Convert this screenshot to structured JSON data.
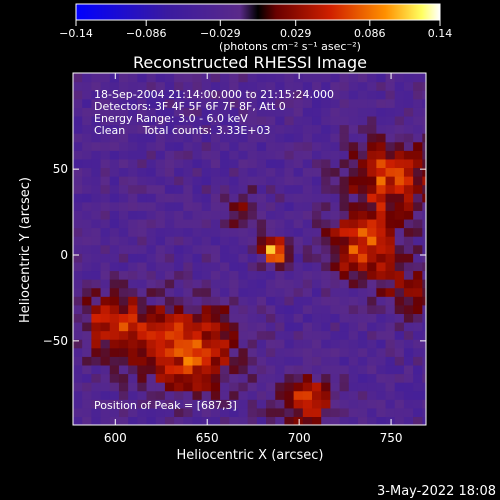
{
  "chart_data": {
    "type": "heatmap",
    "title": "Reconstructed RHESSI Image",
    "xlabel": "Heliocentric X (arcsec)",
    "ylabel": "Heliocentric Y (arcsec)",
    "xlim": [
      577,
      769
    ],
    "ylim": [
      -99,
      106
    ],
    "x_ticks": [
      600,
      650,
      700,
      750
    ],
    "x_tick_labels": [
      "600",
      "650",
      "700",
      "750"
    ],
    "y_ticks": [
      -50,
      0,
      50
    ],
    "y_tick_labels": [
      "−50",
      "0",
      "50"
    ],
    "colorbar": {
      "range": [
        -0.14,
        0.14
      ],
      "ticks": [
        -0.14,
        -0.086,
        -0.029,
        0.029,
        0.086,
        0.14
      ],
      "tick_labels": [
        "−0.14",
        "−0.086",
        "−0.029",
        "0.029",
        "0.086",
        "0.14"
      ],
      "unit_label": "(photons cm⁻² s⁻¹ asec⁻²)"
    },
    "annotations": [
      "18-Sep-2004 21:14:00.000 to 21:15:24.000",
      "Detectors: 3F 4F 5F 6F 7F 8F, Att 0",
      "Energy Range: 3.0 - 6.0 keV",
      "Clean     Total counts: 3.33E+03"
    ],
    "peak_label": "Position of Peak = [687,3]",
    "peak": {
      "x": 687,
      "y": 3
    },
    "bright_regions": [
      {
        "x": 687,
        "y": 3,
        "intensity": 0.14,
        "radius": 7
      },
      {
        "x": 735,
        "y": 5,
        "intensity": 0.1,
        "radius": 18
      },
      {
        "x": 750,
        "y": 45,
        "intensity": 0.09,
        "radius": 22
      },
      {
        "x": 640,
        "y": -55,
        "intensity": 0.1,
        "radius": 25
      },
      {
        "x": 600,
        "y": -40,
        "intensity": 0.08,
        "radius": 18
      },
      {
        "x": 705,
        "y": -85,
        "intensity": 0.08,
        "radius": 15
      },
      {
        "x": 670,
        "y": 25,
        "intensity": 0.04,
        "radius": 12
      },
      {
        "x": 760,
        "y": -20,
        "intensity": 0.05,
        "radius": 15
      }
    ],
    "colors": {
      "low": "#0000ff",
      "mid": "#5a2a8a",
      "high": "#ffffff"
    }
  },
  "footer": {
    "date_stamp": "3-May-2022 18:08"
  }
}
